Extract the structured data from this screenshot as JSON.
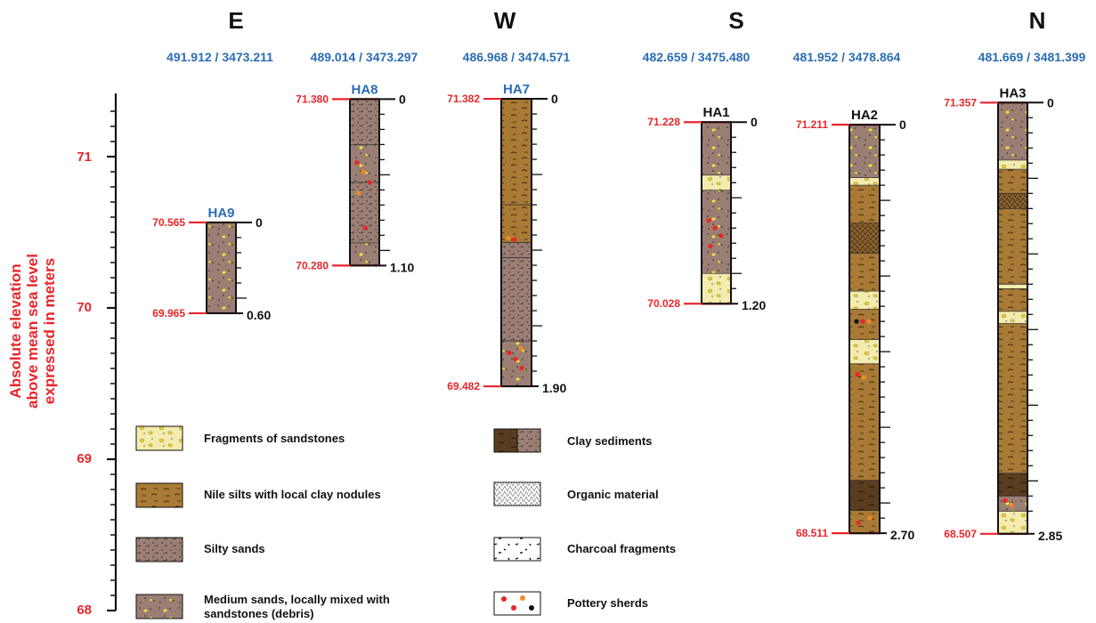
{
  "colors": {
    "elevation": "#e8262b",
    "coordinates": "#2a6db5",
    "sand": "#9b7f74",
    "silt": "#a97a35",
    "clay_dark": "#5a3c20",
    "fragment": "#f3ecae",
    "pottery_red": "#e8262b",
    "pottery_orange": "#f08a24"
  },
  "axis": {
    "title_lines": [
      "Absolute elevation",
      "above mean sea level",
      "expressed in meters"
    ],
    "range": [
      68,
      71.4
    ],
    "labeled_ticks": [
      "68",
      "69",
      "70",
      "71"
    ],
    "minor_step": 0.1
  },
  "directions": [
    {
      "label": "E"
    },
    {
      "label": "W"
    },
    {
      "label": "S"
    },
    {
      "label": "N"
    }
  ],
  "coordinates": [
    "491.912 / 3473.211",
    "489.014 / 3473.297",
    "486.968 / 3474.571",
    "482.659 / 3475.480",
    "481.952 / 3478.864",
    "481.669 / 3481.399"
  ],
  "cores": [
    {
      "id": "HA9",
      "id_color": "blue",
      "top_elev": "70.565",
      "bottom_elev": "69.965",
      "top_depth": "0",
      "bottom_depth": "0.60",
      "top": 70.565,
      "bottom": 69.965,
      "tick_step": 0.1,
      "layers": [
        {
          "from": 0,
          "to": 0.6,
          "type": "sand_debris"
        }
      ],
      "pottery": []
    },
    {
      "id": "HA8",
      "id_color": "blue",
      "top_elev": "71.380",
      "bottom_elev": "70.280",
      "top_depth": "0",
      "bottom_depth": "1.10",
      "top": 71.38,
      "bottom": 70.28,
      "tick_step": 0.1,
      "layers": [
        {
          "from": 0,
          "to": 0.3,
          "type": "sand"
        },
        {
          "from": 0.3,
          "to": 0.55,
          "type": "sand_debris"
        },
        {
          "from": 0.55,
          "to": 0.95,
          "type": "sand"
        },
        {
          "from": 0.95,
          "to": 1.1,
          "type": "sand_debris"
        }
      ],
      "pottery": [
        {
          "d": 0.42,
          "color": "red"
        },
        {
          "d": 0.48,
          "color": "orange"
        },
        {
          "d": 0.55,
          "color": "red"
        },
        {
          "d": 0.62,
          "color": "orange"
        },
        {
          "d": 0.85,
          "color": "red"
        }
      ]
    },
    {
      "id": "HA7",
      "id_color": "blue",
      "top_elev": "71.382",
      "bottom_elev": "69.482",
      "top_depth": "0",
      "bottom_depth": "1.90",
      "top": 71.382,
      "bottom": 69.482,
      "tick_step": 0.1,
      "layers": [
        {
          "from": 0,
          "to": 0.7,
          "type": "silt"
        },
        {
          "from": 0.7,
          "to": 0.95,
          "type": "silt"
        },
        {
          "from": 0.95,
          "to": 1.05,
          "type": "sand"
        },
        {
          "from": 1.05,
          "to": 1.6,
          "type": "sand"
        },
        {
          "from": 1.6,
          "to": 1.9,
          "type": "sand_debris"
        }
      ],
      "pottery": [
        {
          "d": 0.92,
          "color": "orange"
        },
        {
          "d": 0.93,
          "color": "red"
        },
        {
          "d": 1.65,
          "color": "orange"
        },
        {
          "d": 1.68,
          "color": "red"
        },
        {
          "d": 1.72,
          "color": "red"
        },
        {
          "d": 1.78,
          "color": "red"
        }
      ]
    },
    {
      "id": "HA1",
      "id_color": "black",
      "top_elev": "71.228",
      "bottom_elev": "70.028",
      "top_depth": "0",
      "bottom_depth": "1.20",
      "top": 71.228,
      "bottom": 70.028,
      "tick_step": 0.1,
      "layers": [
        {
          "from": 0,
          "to": 0.35,
          "type": "sand_debris"
        },
        {
          "from": 0.35,
          "to": 0.45,
          "type": "fragments"
        },
        {
          "from": 0.45,
          "to": 1.0,
          "type": "sand_debris"
        },
        {
          "from": 1.0,
          "to": 1.2,
          "type": "fragments"
        }
      ],
      "pottery": [
        {
          "d": 0.65,
          "color": "red"
        },
        {
          "d": 0.7,
          "color": "red"
        },
        {
          "d": 0.75,
          "color": "red"
        },
        {
          "d": 0.82,
          "color": "red"
        }
      ]
    },
    {
      "id": "HA2",
      "id_color": "black",
      "top_elev": "71.211",
      "bottom_elev": "68.511",
      "top_depth": "0",
      "bottom_depth": "2.70",
      "top": 71.211,
      "bottom": 68.511,
      "tick_step": 0.1,
      "layers": [
        {
          "from": 0,
          "to": 0.35,
          "type": "sand_debris"
        },
        {
          "from": 0.35,
          "to": 0.4,
          "type": "fragments"
        },
        {
          "from": 0.4,
          "to": 0.65,
          "type": "silt"
        },
        {
          "from": 0.65,
          "to": 0.85,
          "type": "organic_silt"
        },
        {
          "from": 0.85,
          "to": 1.1,
          "type": "silt"
        },
        {
          "from": 1.1,
          "to": 1.22,
          "type": "fragments"
        },
        {
          "from": 1.22,
          "to": 1.42,
          "type": "silt"
        },
        {
          "from": 1.42,
          "to": 1.58,
          "type": "fragments"
        },
        {
          "from": 1.58,
          "to": 2.35,
          "type": "silt"
        },
        {
          "from": 2.35,
          "to": 2.55,
          "type": "clay"
        },
        {
          "from": 2.55,
          "to": 2.7,
          "type": "silt"
        }
      ],
      "pottery": [
        {
          "d": 1.3,
          "color": "black"
        },
        {
          "d": 1.3,
          "color": "red"
        },
        {
          "d": 1.3,
          "color": "orange"
        },
        {
          "d": 1.65,
          "color": "red"
        },
        {
          "d": 1.67,
          "color": "orange"
        },
        {
          "d": 2.6,
          "color": "orange"
        },
        {
          "d": 2.63,
          "color": "red"
        }
      ]
    },
    {
      "id": "HA3",
      "id_color": "black",
      "top_elev": "71.357",
      "bottom_elev": "68.507",
      "top_depth": "0",
      "bottom_depth": "2.85",
      "top": 71.357,
      "bottom": 68.507,
      "tick_step": 0.1,
      "layers": [
        {
          "from": 0,
          "to": 0.38,
          "type": "sand_debris"
        },
        {
          "from": 0.38,
          "to": 0.44,
          "type": "fragments"
        },
        {
          "from": 0.44,
          "to": 0.6,
          "type": "silt"
        },
        {
          "from": 0.6,
          "to": 0.7,
          "type": "organic_silt"
        },
        {
          "from": 0.7,
          "to": 1.2,
          "type": "silt"
        },
        {
          "from": 1.2,
          "to": 1.23,
          "type": "fragments"
        },
        {
          "from": 1.23,
          "to": 1.38,
          "type": "silt"
        },
        {
          "from": 1.38,
          "to": 1.46,
          "type": "fragments"
        },
        {
          "from": 1.46,
          "to": 2.45,
          "type": "silt"
        },
        {
          "from": 2.45,
          "to": 2.6,
          "type": "clay"
        },
        {
          "from": 2.6,
          "to": 2.7,
          "type": "sand_debris"
        },
        {
          "from": 2.7,
          "to": 2.85,
          "type": "fragments"
        }
      ],
      "pottery": [
        {
          "d": 2.63,
          "color": "red"
        },
        {
          "d": 2.66,
          "color": "orange"
        }
      ]
    }
  ],
  "legend": [
    {
      "type": "fragments",
      "lines": [
        "Fragments of sandstones"
      ]
    },
    {
      "type": "silt",
      "lines": [
        "Nile silts with local clay nodules"
      ]
    },
    {
      "type": "sand",
      "lines": [
        "Silty sands"
      ]
    },
    {
      "type": "sand_debris",
      "lines": [
        "Medium sands, locally mixed with",
        "sandstones (debris)"
      ]
    },
    {
      "type": "clay",
      "lines": [
        "Clay sediments"
      ]
    },
    {
      "type": "organic",
      "lines": [
        "Organic material"
      ]
    },
    {
      "type": "charcoal",
      "lines": [
        "Charcoal fragments"
      ]
    },
    {
      "type": "pottery",
      "lines": [
        "Pottery sherds"
      ]
    }
  ]
}
